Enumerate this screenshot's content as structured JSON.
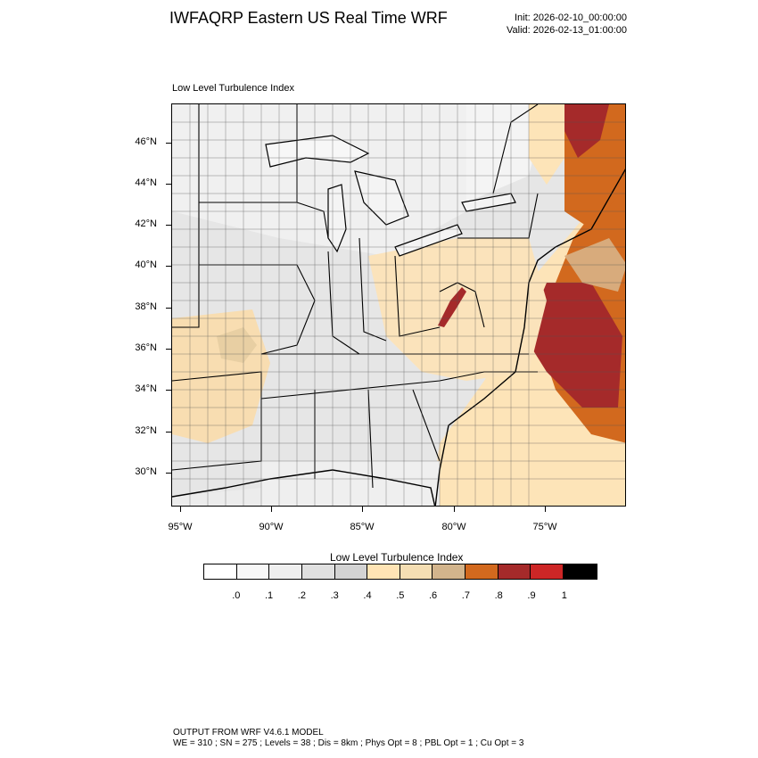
{
  "header": {
    "title": "IWFAQRP Eastern US Real Time WRF",
    "init": "Init: 2026-02-10_00:00:00",
    "valid": "Valid: 2026-02-13_01:00:00"
  },
  "panel": {
    "label": "Low Level Turbulence Index"
  },
  "map": {
    "lat_labels": [
      "46°N",
      "44°N",
      "42°N",
      "40°N",
      "38°N",
      "36°N",
      "34°N",
      "32°N",
      "30°N"
    ],
    "lon_labels": [
      "95°W",
      "90°W",
      "85°W",
      "80°W",
      "75°W"
    ],
    "colors": {
      "land_base": "#e4e4e4",
      "lake": "#f2f2f2",
      "ocean_low": "#fde4b8",
      "low_turb": "#f8d9a4",
      "mid_turb": "#d8ab7c",
      "high_orange": "#d2691e",
      "high_red": "#a52a2a",
      "peak_red": "#c0392b"
    }
  },
  "colorbar": {
    "title": "Low Level Turbulence Index",
    "colors": [
      "#ffffff",
      "#f7f7f7",
      "#efefef",
      "#e0e0e0",
      "#d3d3d3",
      "#ffe4b5",
      "#f5deb3",
      "#d2b48c",
      "#d2691e",
      "#a52a2a",
      "#cd2626",
      "#000000"
    ],
    "labels": [
      ".0",
      ".1",
      ".2",
      ".3",
      ".4",
      ".5",
      ".6",
      ".7",
      ".8",
      ".9",
      "1"
    ]
  },
  "footer": {
    "line1": "OUTPUT FROM WRF V4.6.1 MODEL",
    "line2": "WE = 310 ; SN = 275 ; Levels = 38 ; Dis = 8km ; Phys Opt = 8 ; PBL Opt = 1 ; Cu Opt = 3"
  }
}
